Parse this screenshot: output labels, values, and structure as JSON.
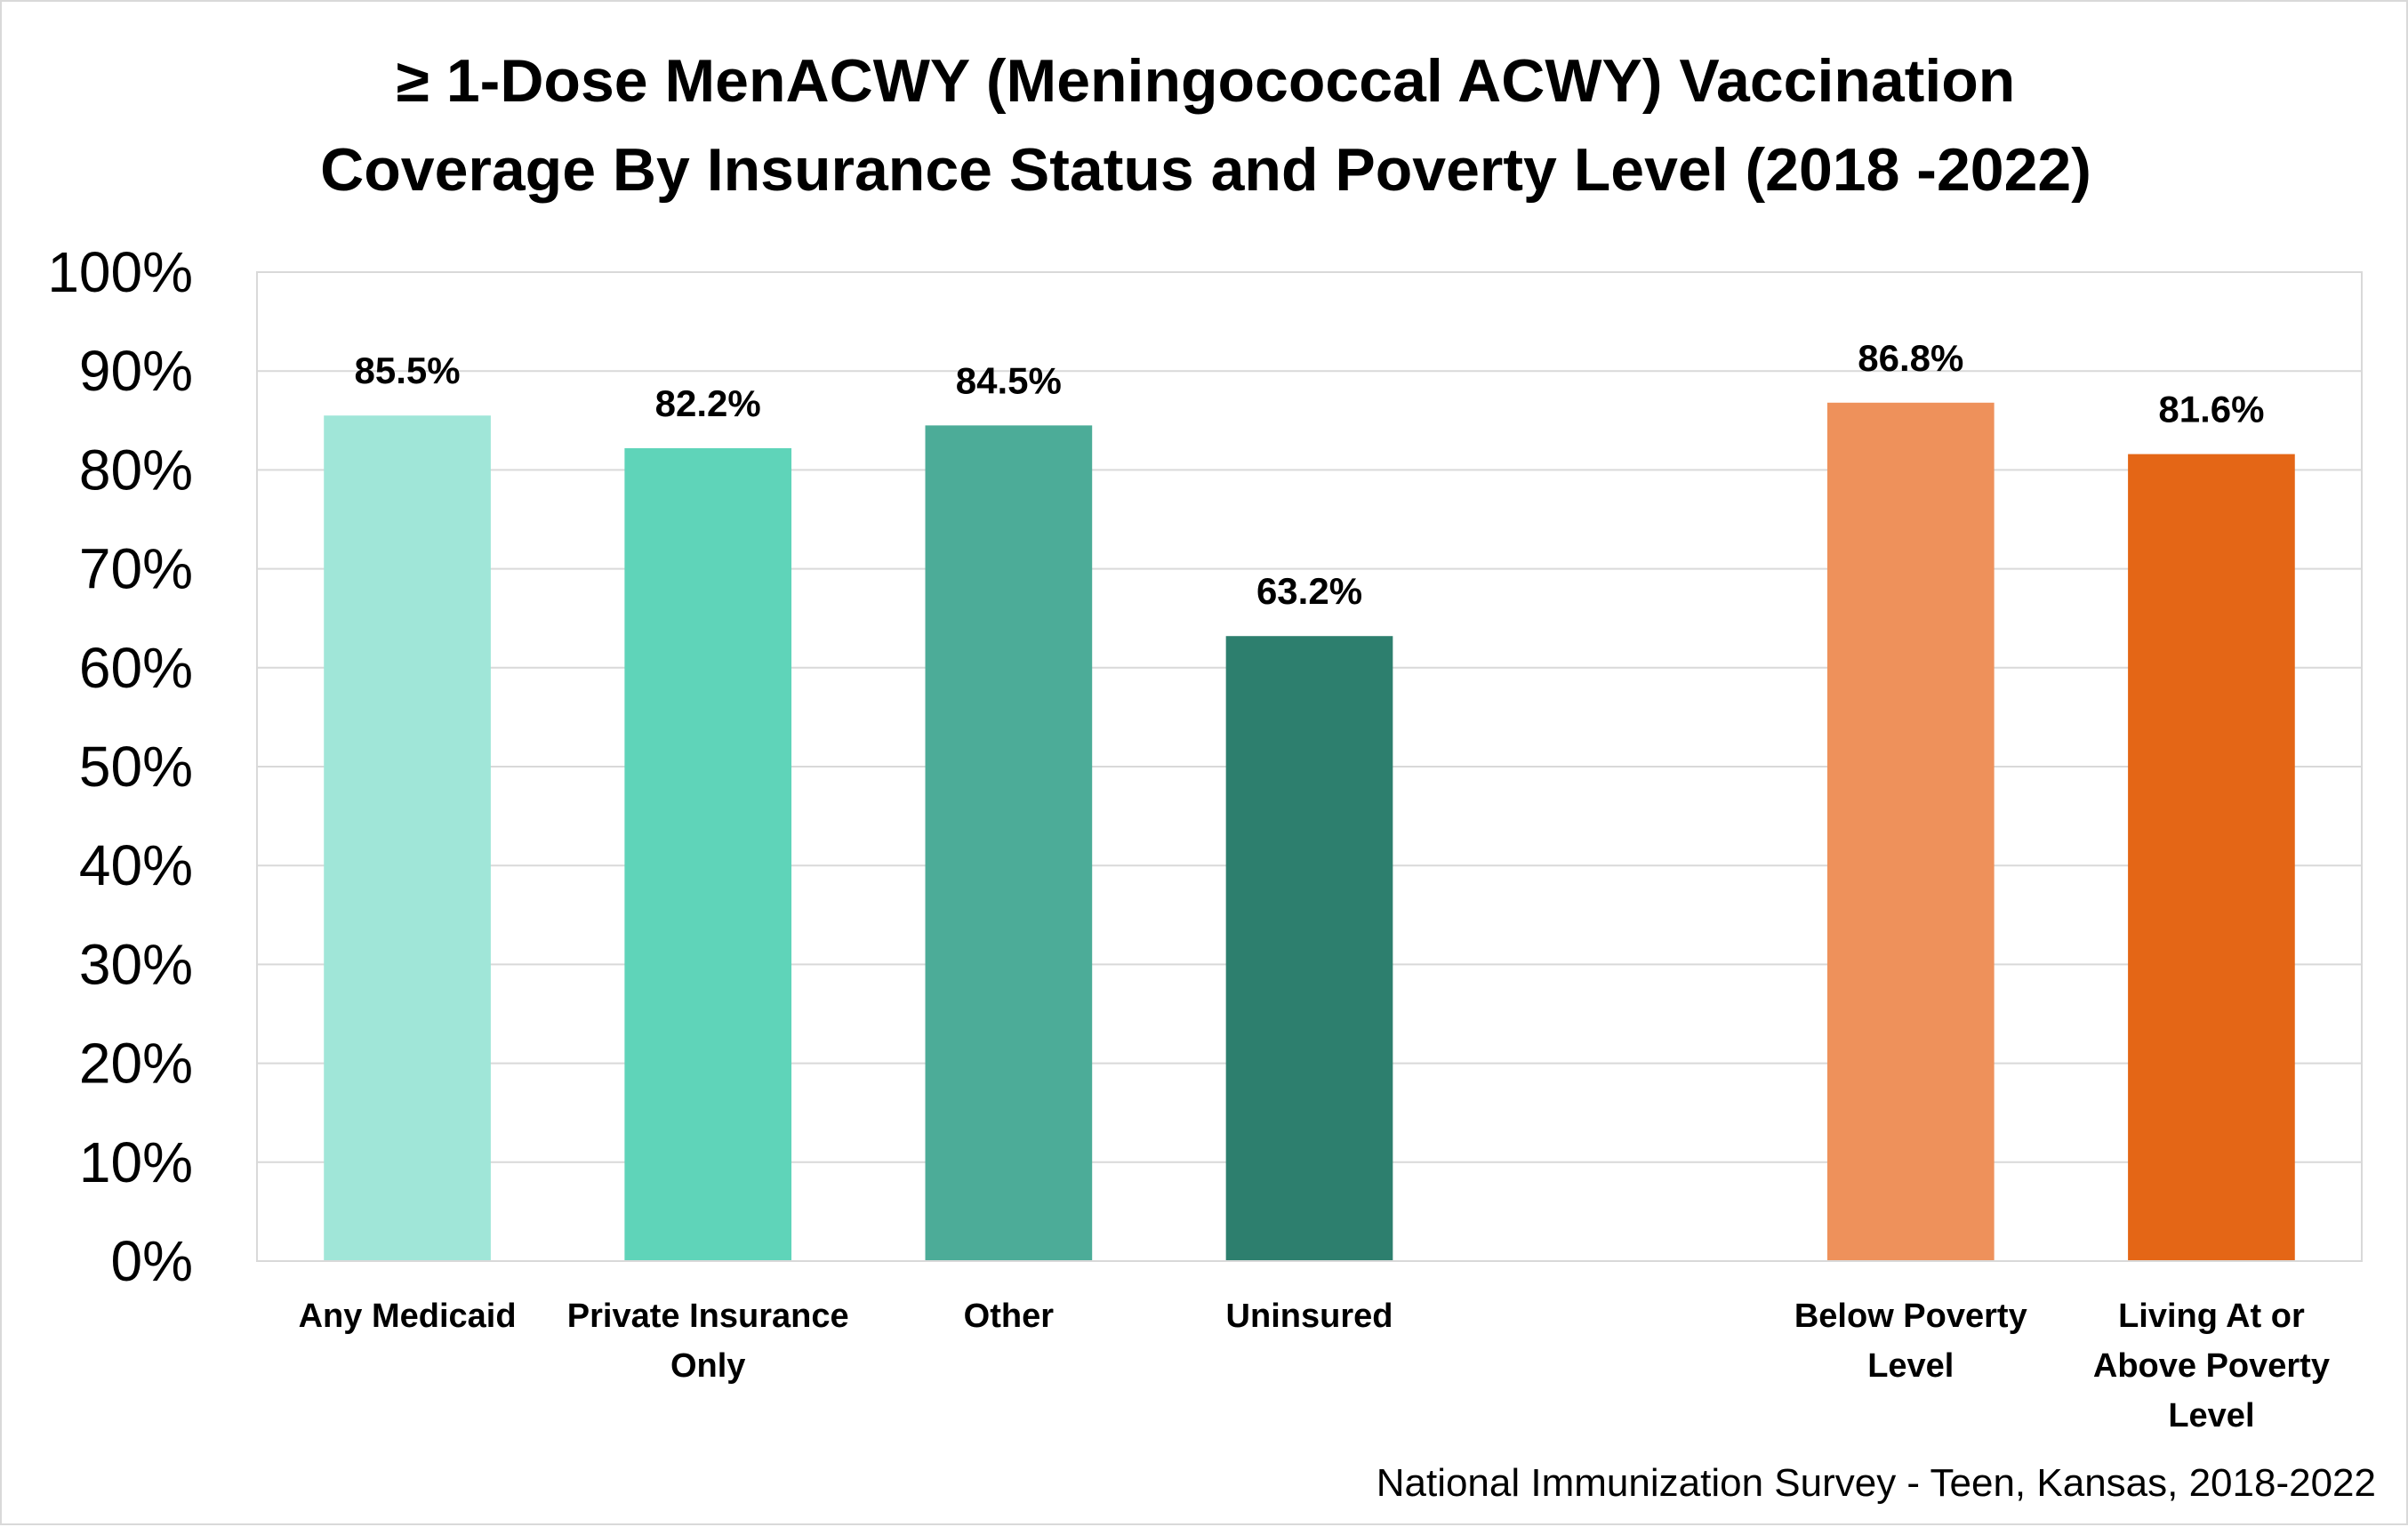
{
  "chart_data": {
    "type": "bar",
    "title_lines": [
      "≥ 1-Dose MenACWY (Meningococcal ACWY) Vaccination",
      "Coverage By Insurance Status and Poverty Level (2018 -2022)"
    ],
    "categories": [
      [
        "Any Medicaid"
      ],
      [
        "Private Insurance",
        "Only"
      ],
      [
        "Other"
      ],
      [
        "Uninsured"
      ],
      [],
      [
        "Below Poverty",
        "Level"
      ],
      [
        "Living At or",
        "Above Poverty",
        "Level"
      ]
    ],
    "values": [
      85.5,
      82.2,
      84.5,
      63.2,
      null,
      86.8,
      81.6
    ],
    "data_labels": [
      "85.5%",
      "82.2%",
      "84.5%",
      "63.2%",
      "",
      "86.8%",
      "81.6%"
    ],
    "colors": [
      "#a0e6d8",
      "#5fd4b9",
      "#4cac98",
      "#2d7f6e",
      "",
      "#ee915b",
      "#e46616"
    ],
    "ylim": [
      0,
      100
    ],
    "yticks": [
      "0%",
      "10%",
      "20%",
      "30%",
      "40%",
      "50%",
      "60%",
      "70%",
      "80%",
      "90%",
      "100%"
    ],
    "grid": true,
    "xlabel": "",
    "ylabel": ""
  },
  "source_note": "National Immunization Survey - Teen, Kansas, 2018-2022"
}
